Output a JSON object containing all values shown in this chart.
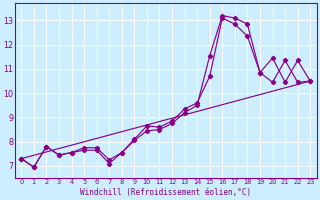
{
  "xlabel": "Windchill (Refroidissement éolien,°C)",
  "bg_color": "#cceeff",
  "grid_color": "#ffffff",
  "line_color": "#880088",
  "xlim": [
    -0.5,
    23.5
  ],
  "ylim": [
    6.5,
    13.7
  ],
  "yticks": [
    7,
    8,
    9,
    10,
    11,
    12,
    13
  ],
  "xticks": [
    0,
    1,
    2,
    3,
    4,
    5,
    6,
    7,
    8,
    9,
    10,
    11,
    12,
    13,
    14,
    15,
    16,
    17,
    18,
    19,
    20,
    21,
    22,
    23
  ],
  "line1_x": [
    0,
    1,
    2,
    3,
    4,
    5,
    6,
    7,
    8,
    9,
    10,
    11,
    12,
    13,
    14,
    15,
    16,
    17,
    18,
    19,
    20,
    21,
    22,
    23
  ],
  "line1_y": [
    7.3,
    6.95,
    7.8,
    7.45,
    7.55,
    7.75,
    7.75,
    7.25,
    7.55,
    8.1,
    8.65,
    8.6,
    8.85,
    9.35,
    9.6,
    10.7,
    13.1,
    12.85,
    12.35,
    10.85,
    11.45,
    10.45,
    11.35,
    10.5
  ],
  "line2_x": [
    0,
    1,
    2,
    3,
    4,
    5,
    6,
    7,
    8,
    9,
    10,
    11,
    12,
    13,
    14,
    15,
    16,
    17,
    18,
    19,
    20,
    21,
    22,
    23
  ],
  "line2_y": [
    7.3,
    6.95,
    7.8,
    7.45,
    7.55,
    7.65,
    7.65,
    7.1,
    7.55,
    8.05,
    8.45,
    8.5,
    8.75,
    9.2,
    9.5,
    11.55,
    13.2,
    13.1,
    12.85,
    10.85,
    10.45,
    11.35,
    10.45,
    10.5
  ],
  "line3_x": [
    0,
    23
  ],
  "line3_y": [
    7.3,
    10.5
  ]
}
